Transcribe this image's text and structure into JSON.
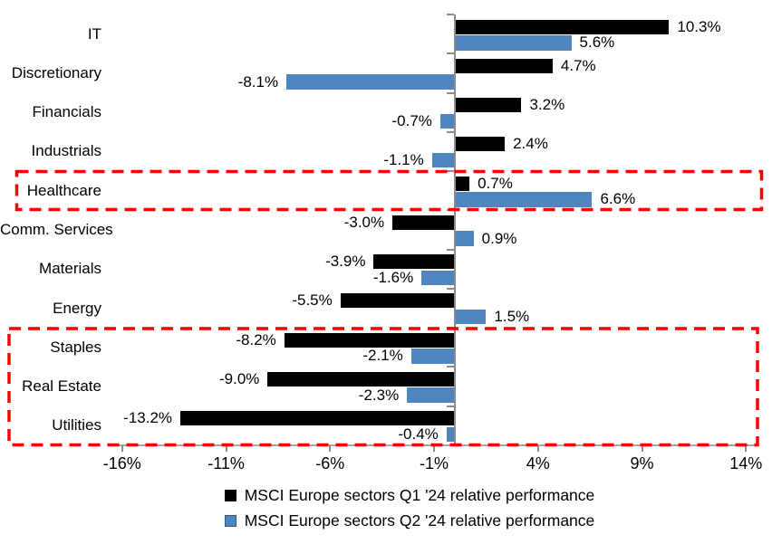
{
  "chart_data": {
    "type": "bar",
    "orientation": "horizontal",
    "title": "",
    "xlabel": "",
    "ylabel": "",
    "categories": [
      "IT",
      "Discretionary",
      "Financials",
      "Industrials",
      "Healthcare",
      "Comm. Services",
      "Materials",
      "Energy",
      "Staples",
      "Real Estate",
      "Utilities"
    ],
    "series": [
      {
        "name": "MSCI Europe sectors Q1 '24 relative performance",
        "color": "#000000",
        "values": [
          10.3,
          4.7,
          3.2,
          2.4,
          0.7,
          -3.0,
          -3.9,
          -5.5,
          -8.2,
          -9.0,
          -13.2
        ],
        "labels": [
          "10.3%",
          "4.7%",
          "3.2%",
          "2.4%",
          "0.7%",
          "-3.0%",
          "-3.9%",
          "-5.5%",
          "-8.2%",
          "-9.0%",
          "-13.2%"
        ]
      },
      {
        "name": "MSCI Europe sectors Q2 '24 relative performance",
        "color": "#4F86C0",
        "values": [
          5.6,
          -8.1,
          -0.7,
          -1.1,
          6.6,
          0.9,
          -1.6,
          1.5,
          -2.1,
          -2.3,
          -0.4
        ],
        "labels": [
          "5.6%",
          "-8.1%",
          "-0.7%",
          "-1.1%",
          "6.6%",
          "0.9%",
          "-1.6%",
          "1.5%",
          "-2.1%",
          "-2.3%",
          "-0.4%"
        ]
      }
    ],
    "x_ticks": [
      "-16%",
      "-11%",
      "-6%",
      "-1%",
      "4%",
      "9%",
      "14%"
    ],
    "x_tick_values": [
      -16,
      -11,
      -6,
      -1,
      4,
      9,
      14
    ],
    "xlim": [
      -17.5,
      15.3
    ],
    "grid": false,
    "legend_position": "bottom",
    "highlight_color": "#FF0000",
    "highlights": [
      {
        "rows": [
          "Healthcare"
        ]
      },
      {
        "rows": [
          "Staples",
          "Real Estate",
          "Utilities"
        ]
      }
    ]
  }
}
